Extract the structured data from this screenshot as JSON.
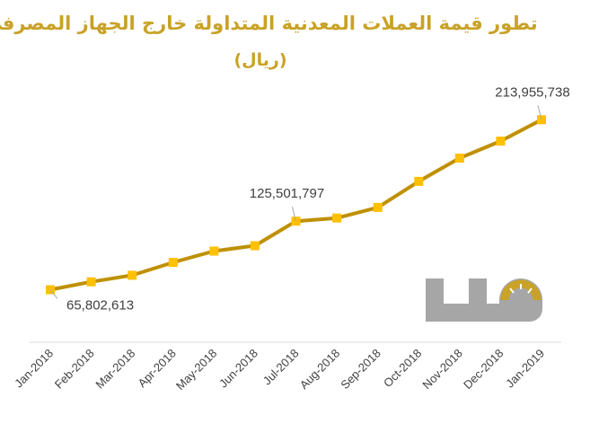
{
  "chart_data": {
    "type": "line",
    "title": "تطور قيمة العملات المعدنية المتداولة خارج الجهاز المصرفي",
    "subtitle": "(ريال)",
    "categories": [
      "Jan-2018",
      "Feb-2018",
      "Mar-2018",
      "Apr-2018",
      "May-2018",
      "Jun-2018",
      "Jul-2018",
      "Aug-2018",
      "Sep-2018",
      "Oct-2018",
      "Nov-2018",
      "Dec-2018",
      "Jan-2019"
    ],
    "series": [
      {
        "values": [
          65802613,
          72700000,
          78400000,
          89600000,
          99500000,
          104200000,
          125501797,
          128300000,
          137500000,
          160200000,
          180500000,
          195300000,
          213955738
        ]
      }
    ],
    "data_labels": [
      {
        "index": 0,
        "text": "65,802,613"
      },
      {
        "index": 6,
        "text": "125,501,797"
      },
      {
        "index": 12,
        "text": "213,955,738"
      }
    ],
    "ylim": [
      20000000,
      240000000
    ],
    "grid": false,
    "legend": "none",
    "line_color": "#bf9000",
    "marker_color": "#ffc000",
    "title_color": "#c9a227",
    "logo": {
      "name": "mal-logo",
      "text": "مال",
      "colors": [
        "#a6a6a6",
        "#c9a227"
      ]
    }
  }
}
